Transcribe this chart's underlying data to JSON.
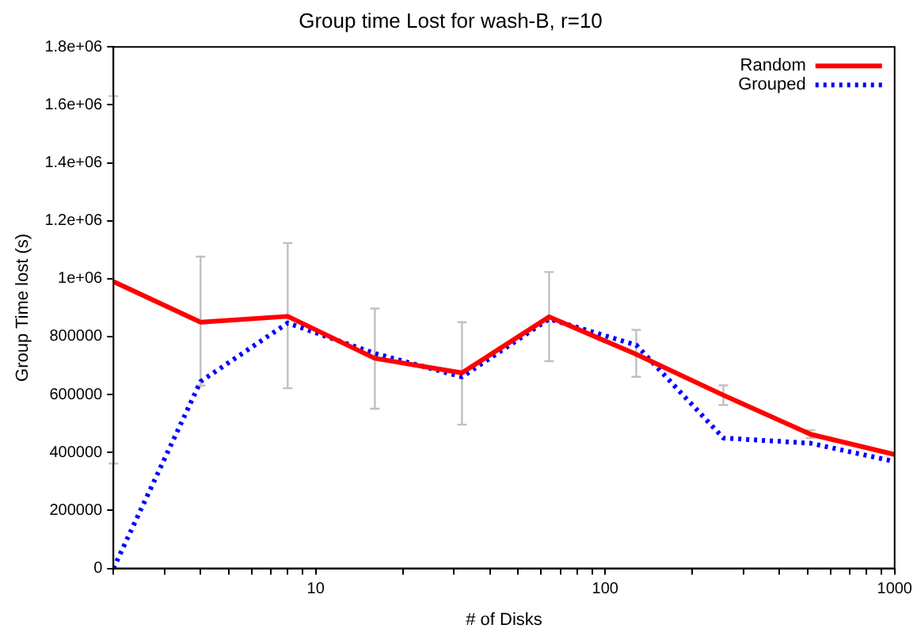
{
  "chart_data": {
    "type": "line",
    "title": "Group time Lost for wash-B, r=10",
    "xlabel": "# of Disks",
    "ylabel": "Group Time lost (s)",
    "x": [
      2,
      4,
      8,
      16,
      32,
      64,
      128,
      256,
      512,
      1000
    ],
    "series": [
      {
        "name": "Random",
        "color": "#ff0000",
        "line_style": "solid",
        "values": [
          990000,
          850000,
          870000,
          725000,
          675000,
          868000,
          739000,
          598000,
          463000,
          393000
        ],
        "errors": [
          [
            362000,
            1630000
          ],
          [
            631000,
            1076000
          ],
          [
            622000,
            1123000
          ],
          [
            551000,
            897000
          ],
          [
            496000,
            850000
          ],
          [
            715000,
            1023000
          ],
          [
            661000,
            823000
          ],
          [
            564000,
            632000
          ],
          [
            450000,
            477000
          ],
          null
        ]
      },
      {
        "name": "Grouped",
        "color": "#0000ff",
        "line_style": "dotted",
        "values": [
          0,
          645000,
          847000,
          742000,
          661000,
          861000,
          771000,
          450000,
          432000,
          369000
        ]
      }
    ],
    "log": "x",
    "xlim": [
      2,
      1000
    ],
    "xticks": [
      {
        "value": 2,
        "label": null
      },
      {
        "value": 3,
        "label": null
      },
      {
        "value": 4,
        "label": null
      },
      {
        "value": 5,
        "label": null
      },
      {
        "value": 6,
        "label": null
      },
      {
        "value": 7,
        "label": null
      },
      {
        "value": 8,
        "label": null
      },
      {
        "value": 9,
        "label": null
      },
      10,
      {
        "value": 20,
        "label": null
      },
      {
        "value": 30,
        "label": null
      },
      {
        "value": 40,
        "label": null
      },
      {
        "value": 50,
        "label": null
      },
      {
        "value": 60,
        "label": null
      },
      {
        "value": 70,
        "label": null
      },
      {
        "value": 80,
        "label": null
      },
      {
        "value": 90,
        "label": null
      },
      100,
      {
        "value": 200,
        "label": null
      },
      {
        "value": 300,
        "label": null
      },
      {
        "value": 400,
        "label": null
      },
      {
        "value": 500,
        "label": null
      },
      {
        "value": 600,
        "label": null
      },
      {
        "value": 700,
        "label": null
      },
      {
        "value": 800,
        "label": null
      },
      {
        "value": 900,
        "label": null
      },
      1000
    ],
    "ylim": [
      0,
      1800000
    ],
    "yticks": [
      0,
      200000,
      400000,
      600000,
      800000,
      {
        "value": 1000000,
        "label": "1e+06"
      },
      {
        "value": 1200000,
        "label": "1.2e+06"
      },
      {
        "value": 1400000,
        "label": "1.4e+06"
      },
      {
        "value": 1600000,
        "label": "1.6e+06"
      },
      {
        "value": 1800000,
        "label": "1.8e+06"
      }
    ],
    "grid": false,
    "legend": "top right",
    "marker": "none"
  }
}
